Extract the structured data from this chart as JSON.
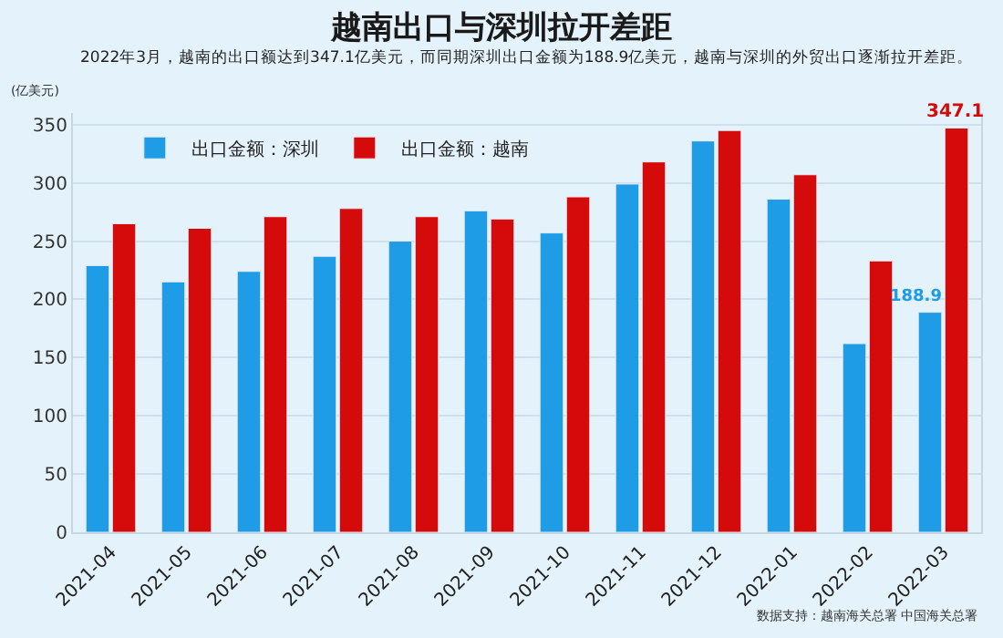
{
  "chart_data": {
    "type": "bar",
    "title": "越南出口与深圳拉开差距",
    "subtitle": "2022年3月，越南的出口额达到347.1亿美元，而同期深圳出口金额为188.9亿美元，越南与深圳的外贸出口逐渐拉开差距。",
    "ylabel": "(亿美元)",
    "categories": [
      "2021-04",
      "2021-05",
      "2021-06",
      "2021-07",
      "2021-08",
      "2021-09",
      "2021-10",
      "2021-11",
      "2021-12",
      "2022-01",
      "2022-02",
      "2022-03"
    ],
    "series": [
      {
        "name": "出口金额：深圳",
        "color": "#1f9ce6",
        "values": [
          229,
          215,
          224,
          237,
          250,
          276,
          257,
          299,
          336,
          286,
          162,
          188.9
        ],
        "value_labels": [
          null,
          null,
          null,
          null,
          null,
          null,
          null,
          null,
          null,
          null,
          null,
          "188.9"
        ]
      },
      {
        "name": "出口金额：越南",
        "color": "#d50b0b",
        "values": [
          265,
          261,
          271,
          278,
          271,
          269,
          288,
          318,
          345,
          307,
          233,
          347.1
        ],
        "value_labels": [
          null,
          null,
          null,
          null,
          null,
          null,
          null,
          null,
          null,
          null,
          null,
          "347.1"
        ]
      }
    ],
    "ylim": [
      0,
      360
    ],
    "yticks": [
      0,
      50,
      100,
      150,
      200,
      250,
      300,
      350
    ],
    "grid": "y",
    "legend": "top left",
    "annotations": [
      "数据支持：越南海关总署 中国海关总署"
    ]
  }
}
